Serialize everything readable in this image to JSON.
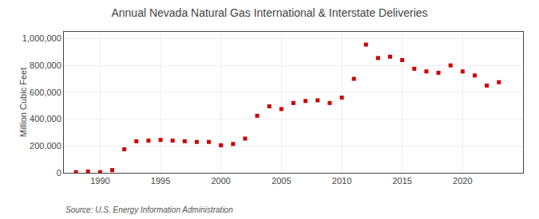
{
  "chart_data": {
    "type": "scatter",
    "title": "Annual Nevada Natural Gas International & Interstate Deliveries",
    "ylabel": "Million Cubic Feet",
    "annotations": [
      {
        "text": "Source: U.S. Energy Information Administration"
      }
    ],
    "x": [
      1988,
      1989,
      1990,
      1991,
      1992,
      1993,
      1994,
      1995,
      1996,
      1997,
      1998,
      1999,
      2000,
      2001,
      2002,
      2003,
      2004,
      2005,
      2006,
      2007,
      2008,
      2009,
      2010,
      2011,
      2012,
      2013,
      2014,
      2015,
      2016,
      2017,
      2018,
      2019,
      2020,
      2021,
      2022,
      2023
    ],
    "values": [
      5000,
      10000,
      5000,
      20000,
      175000,
      235000,
      240000,
      245000,
      240000,
      235000,
      230000,
      230000,
      205000,
      215000,
      255000,
      425000,
      495000,
      475000,
      520000,
      535000,
      540000,
      520000,
      560000,
      700000,
      955000,
      855000,
      865000,
      840000,
      775000,
      755000,
      745000,
      800000,
      755000,
      725000,
      650000,
      675000
    ],
    "color": "#cc0000",
    "marker": "square",
    "xlim": [
      1987,
      2025
    ],
    "xticks": [
      1990,
      1995,
      2000,
      2005,
      2010,
      2015,
      2020
    ],
    "ylim": [
      0,
      1050000
    ],
    "yticks": [
      0,
      {
        "value": 200000,
        "label": "200,000"
      },
      {
        "value": 400000,
        "label": "400,000"
      },
      {
        "value": 600000,
        "label": "600,000"
      },
      {
        "value": 800000,
        "label": "800,000"
      },
      {
        "value": 1000000,
        "label": "1,000,000"
      }
    ],
    "grid": true
  }
}
